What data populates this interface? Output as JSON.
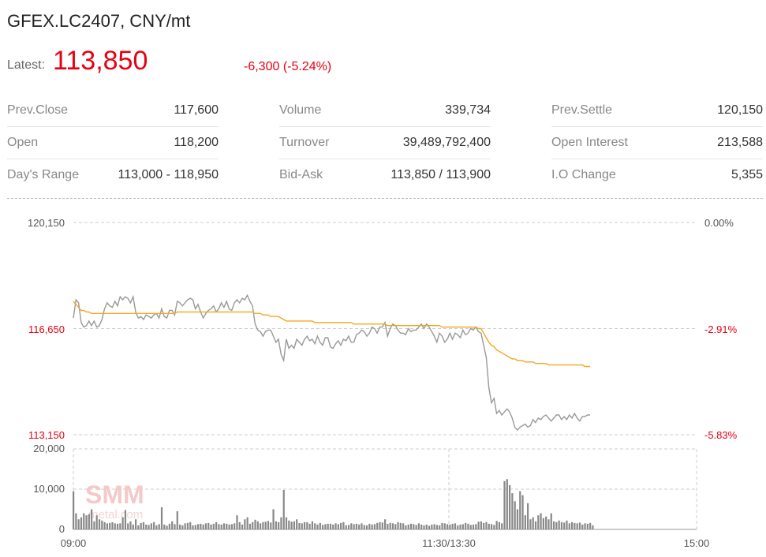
{
  "header": {
    "title": "GFEX.LC2407, CNY/mt",
    "latest_label": "Latest:",
    "latest_value": "113,850",
    "change": "-6,300 (-5.24%)"
  },
  "stats": {
    "col1": [
      {
        "label": "Prev.Close",
        "value": "117,600"
      },
      {
        "label": "Open",
        "value": "118,200"
      },
      {
        "label": "Day's Range",
        "value": "113,000 - 118,950"
      }
    ],
    "col2": [
      {
        "label": "Volume",
        "value": "339,734"
      },
      {
        "label": "Turnover",
        "value": "39,489,792,400"
      },
      {
        "label": "Bid-Ask",
        "value": "113,850 / 113,900"
      }
    ],
    "col3": [
      {
        "label": "Prev.Settle",
        "value": "120,150"
      },
      {
        "label": "Open Interest",
        "value": "213,588"
      },
      {
        "label": "I.O Change",
        "value": "5,355"
      }
    ]
  },
  "watermark": {
    "logo": "SMM",
    "site": "metal.com"
  },
  "colors": {
    "price": "#999999",
    "avg": "#f5a623",
    "volume": "#888888",
    "red": "#e60012",
    "grid": "#cccccc"
  },
  "chart_data": {
    "type": "line",
    "price_axis": {
      "ticks": [
        120150,
        116650,
        113150
      ],
      "tick_labels": [
        "120,150",
        "116,650",
        "113,150"
      ],
      "pct_labels": [
        "0.00%",
        "-2.91%",
        "-5.83%"
      ],
      "ylim": [
        113150,
        120150
      ]
    },
    "volume_axis": {
      "ticks": [
        0,
        10000,
        20000
      ],
      "tick_labels": [
        "0",
        "10,000",
        "20,000"
      ],
      "ylim": [
        0,
        20000
      ]
    },
    "x_labels": [
      "09:00",
      "11:30/13:30",
      "15:00"
    ],
    "price": [
      117000,
      117600,
      117500,
      116850,
      116700,
      116750,
      116900,
      116750,
      116900,
      116700,
      116750,
      116950,
      117300,
      117500,
      117400,
      117350,
      117550,
      117400,
      117700,
      117600,
      117700,
      117650,
      117500,
      117700,
      117200,
      117000,
      117050,
      116950,
      117100,
      117050,
      117000,
      117100,
      117150,
      117000,
      117300,
      117050,
      117000,
      117250,
      117250,
      117100,
      117550,
      117500,
      117400,
      117500,
      117600,
      117650,
      117600,
      117300,
      117450,
      117200,
      117000,
      117150,
      117250,
      117300,
      117400,
      117200,
      117300,
      117500,
      117350,
      117550,
      117300,
      117250,
      117500,
      117600,
      117500,
      117650,
      117600,
      117750,
      117550,
      117400,
      116800,
      116600,
      116550,
      116400,
      116550,
      116600,
      116600,
      116400,
      116200,
      116300,
      115800,
      115600,
      116300,
      116000,
      116100,
      116000,
      116300,
      116200,
      116100,
      116300,
      116400,
      116250,
      116300,
      116150,
      116400,
      116200,
      116100,
      116350,
      116350,
      116050,
      116000,
      116150,
      116250,
      116100,
      116300,
      116250,
      116400,
      116200,
      116200,
      116450,
      116500,
      116600,
      116550,
      116400,
      116500,
      116700,
      116650,
      116500,
      116700,
      116700,
      116850,
      116400,
      116650,
      116800,
      116750,
      116600,
      116500,
      116500,
      116450,
      116650,
      116550,
      116600,
      116600,
      116700,
      116800,
      116650,
      116800,
      116700,
      116550,
      116400,
      116200,
      116500,
      116400,
      116200,
      116300,
      116500,
      116300,
      116500,
      116450,
      116350,
      116600,
      116450,
      116500,
      116650,
      116600,
      116700,
      116550,
      116500,
      116100,
      115700,
      114700,
      114200,
      114350,
      113850,
      113950,
      113800,
      113900,
      114000,
      113900,
      113700,
      113400,
      113300,
      113400,
      113450,
      113500,
      113400,
      113450,
      113650,
      113550,
      113700,
      113650,
      113750,
      113800,
      113700,
      113600,
      113700,
      113800,
      113800,
      113650,
      113750,
      113650,
      113800,
      113700,
      113850,
      113700,
      113600,
      113750,
      113750,
      113800,
      113800
    ],
    "avg": [
      117550,
      117450,
      117350,
      117250,
      117250,
      117200,
      117200,
      117150,
      117150,
      117150,
      117150,
      117150,
      117150,
      117150,
      117150,
      117150,
      117150,
      117150,
      117150,
      117150,
      117150,
      117150,
      117150,
      117150,
      117150,
      117150,
      117150,
      117150,
      117150,
      117150,
      117150,
      117150,
      117150,
      117150,
      117150,
      117150,
      117150,
      117150,
      117150,
      117150,
      117200,
      117200,
      117200,
      117200,
      117200,
      117200,
      117200,
      117200,
      117200,
      117200,
      117200,
      117200,
      117200,
      117200,
      117200,
      117200,
      117200,
      117200,
      117200,
      117200,
      117200,
      117200,
      117200,
      117200,
      117200,
      117200,
      117200,
      117200,
      117200,
      117200,
      117150,
      117150,
      117150,
      117100,
      117100,
      117100,
      117050,
      117050,
      117050,
      117050,
      117000,
      116950,
      116900,
      116900,
      116900,
      116900,
      116900,
      116900,
      116900,
      116900,
      116900,
      116900,
      116900,
      116850,
      116850,
      116850,
      116850,
      116850,
      116850,
      116850,
      116850,
      116850,
      116850,
      116850,
      116850,
      116850,
      116850,
      116850,
      116800,
      116800,
      116800,
      116800,
      116800,
      116800,
      116800,
      116800,
      116800,
      116800,
      116800,
      116800,
      116800,
      116750,
      116750,
      116750,
      116750,
      116750,
      116750,
      116750,
      116750,
      116750,
      116750,
      116750,
      116750,
      116750,
      116750,
      116750,
      116750,
      116750,
      116750,
      116750,
      116750,
      116750,
      116700,
      116700,
      116700,
      116700,
      116700,
      116700,
      116700,
      116700,
      116700,
      116700,
      116700,
      116700,
      116700,
      116700,
      116650,
      116650,
      116500,
      116350,
      116200,
      116100,
      116050,
      115950,
      115900,
      115850,
      115800,
      115750,
      115700,
      115650,
      115650,
      115600,
      115600,
      115600,
      115550,
      115550,
      115550,
      115550,
      115500,
      115500,
      115500,
      115500,
      115500,
      115450,
      115450,
      115450,
      115450,
      115450,
      115450,
      115450,
      115450,
      115450,
      115450,
      115450,
      115450,
      115450,
      115450,
      115400,
      115400,
      115400
    ],
    "volume": [
      9500,
      4000,
      2500,
      3000,
      4000,
      3500,
      3800,
      5000,
      2000,
      3500,
      2500,
      2200,
      1800,
      1500,
      1600,
      1800,
      1500,
      1400,
      1500,
      3000,
      4800,
      1500,
      2000,
      1200,
      2500,
      1000,
      1600,
      1800,
      1200,
      1100,
      1500,
      1800,
      1000,
      1300,
      5500,
      1200,
      900,
      1400,
      2000,
      1300,
      4500,
      1200,
      1000,
      1500,
      1600,
      1800,
      1000,
      1100,
      1300,
      1400,
      1200,
      1500,
      1600,
      1200,
      1400,
      1800,
      1300,
      1200,
      1500,
      1400,
      1200,
      1300,
      1500,
      3500,
      1800,
      1200,
      2500,
      3000,
      1400,
      1800,
      2400,
      2000,
      1500,
      1800,
      1900,
      2100,
      1700,
      5000,
      2000,
      1800,
      3000,
      9800,
      3000,
      2200,
      1900,
      2000,
      2500,
      1600,
      1500,
      1800,
      1800,
      1400,
      2000,
      1500,
      1200,
      1600,
      1100,
      1300,
      1400,
      1400,
      1200,
      1500,
      1300,
      1600,
      1800,
      1000,
      1100,
      1500,
      1300,
      1400,
      1200,
      1500,
      1100,
      1000,
      1400,
      1200,
      1300,
      1600,
      1800,
      1700,
      2500,
      1400,
      1600,
      1500,
      1300,
      1800,
      1600,
      1500,
      1000,
      1200,
      1400,
      1300,
      1100,
      1500,
      1200,
      1000,
      1200,
      900,
      1200,
      1300,
      1100,
      1000,
      1600,
      1500,
      1300,
      1200,
      1400,
      1500,
      1000,
      1200,
      1300,
      1600,
      1400,
      1100,
      1200,
      1300,
      1900,
      2000,
      1600,
      1800,
      1400,
      1300,
      1100,
      2100,
      1800,
      1500,
      12000,
      12500,
      11000,
      9000,
      7000,
      5000,
      9500,
      8500,
      3500,
      6500,
      2500,
      3000,
      2000,
      3500,
      4000,
      2800,
      3200,
      2500,
      4000,
      2000,
      1800,
      2200,
      1800,
      1700,
      2200,
      1500,
      1800,
      1600,
      1500,
      1700,
      1200,
      1500,
      1400,
      1600,
      1000
    ]
  }
}
